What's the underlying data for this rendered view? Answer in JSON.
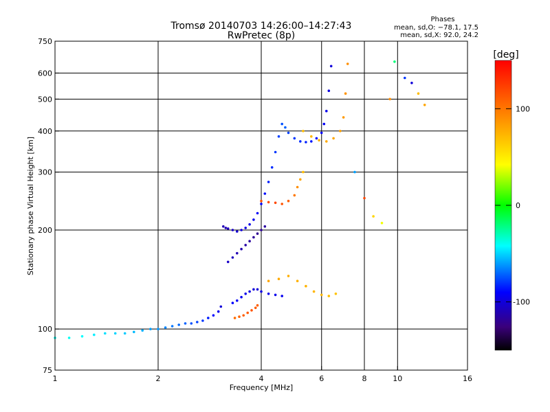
{
  "chart_data": {
    "type": "scatter",
    "title": "Tromsø 20140703 14:26:00–14:27:43",
    "subtitle": "RwPretec (8p)",
    "xlabel": "Frequency [MHz]",
    "ylabel": "Stationary phase Virtual Height [km]",
    "x_scale": "log",
    "y_scale": "log",
    "xlim": [
      1,
      16
    ],
    "ylim": [
      75,
      750
    ],
    "x_ticks": [
      1,
      2,
      4,
      6,
      8,
      10,
      16
    ],
    "y_ticks": [
      75,
      100,
      200,
      300,
      400,
      500,
      600,
      750
    ],
    "grid": true,
    "stats_title": "Phases",
    "stats_lines": [
      "mean, sd,O: −78.1, 17.5",
      "mean, sd,X:  92.0, 24.2"
    ],
    "colorbar": {
      "label": "[deg]",
      "range": [
        -150,
        150
      ],
      "ticks": [
        100,
        0,
        -100
      ],
      "colormap": "rainbow"
    },
    "series": [
      {
        "x": [
          1.0,
          1.1,
          1.2,
          1.3,
          1.4,
          1.5,
          1.6,
          1.7,
          1.8,
          1.9,
          2.0,
          2.1,
          2.2,
          2.3,
          2.4,
          2.5,
          2.6,
          2.7,
          2.8,
          2.9,
          3.0,
          3.05
        ],
        "y": [
          94,
          94,
          95,
          96,
          97,
          97,
          97,
          98,
          99,
          100,
          100,
          101,
          102,
          103,
          104,
          104,
          105,
          106,
          108,
          110,
          113,
          117
        ],
        "phase": [
          -40,
          -40,
          -42,
          -45,
          -48,
          -50,
          -52,
          -55,
          -57,
          -60,
          -62,
          -65,
          -68,
          -70,
          -72,
          -75,
          -78,
          -80,
          -85,
          -90,
          -95,
          -100
        ]
      },
      {
        "x": [
          3.1,
          3.15,
          3.2,
          3.3,
          3.4,
          3.5,
          3.6,
          3.7,
          3.8,
          3.9,
          4.0,
          4.1,
          4.2,
          4.3,
          4.4,
          4.5,
          4.6,
          4.7
        ],
        "y": [
          205,
          203,
          202,
          200,
          198,
          200,
          203,
          208,
          215,
          225,
          240,
          258,
          280,
          310,
          345,
          385,
          420,
          410
        ],
        "phase": [
          -110,
          -110,
          -108,
          -105,
          -102,
          -100,
          -98,
          -96,
          -94,
          -92,
          -90,
          -88,
          -85,
          -82,
          -80,
          -78,
          -75,
          -72
        ]
      },
      {
        "x": [
          4.8,
          5.0,
          5.2,
          5.4,
          5.6,
          5.8,
          6.0,
          6.1,
          6.2,
          6.3,
          6.4
        ],
        "y": [
          395,
          380,
          372,
          370,
          372,
          380,
          395,
          420,
          460,
          530,
          630
        ],
        "phase": [
          -78,
          -80,
          -82,
          -84,
          -86,
          -88,
          -90,
          -92,
          -95,
          -98,
          -100
        ]
      },
      {
        "x": [
          5.3,
          5.6,
          5.9,
          6.2,
          6.5,
          6.8,
          6.95,
          7.05,
          7.15
        ],
        "y": [
          400,
          385,
          375,
          372,
          380,
          400,
          440,
          520,
          640
        ],
        "phase": [
          70,
          72,
          75,
          78,
          80,
          82,
          85,
          88,
          90
        ]
      },
      {
        "x": [
          3.3,
          3.4,
          3.5,
          3.6,
          3.7,
          3.8,
          3.9,
          4.0,
          4.2,
          4.4,
          4.6
        ],
        "y": [
          120,
          122,
          125,
          128,
          130,
          132,
          132,
          130,
          128,
          127,
          126
        ],
        "phase": [
          -90,
          -92,
          -94,
          -96,
          -98,
          -100,
          -100,
          -98,
          -96,
          -95,
          -94
        ]
      },
      {
        "x": [
          3.35,
          3.45,
          3.55,
          3.65,
          3.75,
          3.85,
          3.9
        ],
        "y": [
          108,
          109,
          110,
          112,
          114,
          116,
          118
        ],
        "phase": [
          105,
          108,
          110,
          112,
          115,
          112,
          110
        ]
      },
      {
        "x": [
          4.0,
          4.2,
          4.4,
          4.6,
          4.8,
          5.0,
          5.1,
          5.2,
          5.3
        ],
        "y": [
          245,
          243,
          242,
          240,
          245,
          255,
          270,
          285,
          300
        ],
        "phase": [
          115,
          118,
          120,
          115,
          110,
          100,
          90,
          80,
          70
        ]
      },
      {
        "x": [
          4.2,
          4.5,
          4.8,
          5.1,
          5.4,
          5.7,
          6.0,
          6.3,
          6.6
        ],
        "y": [
          140,
          142,
          145,
          140,
          135,
          130,
          127,
          126,
          128
        ],
        "phase": [
          80,
          78,
          76,
          75,
          74,
          73,
          72,
          70,
          68
        ]
      },
      {
        "x": [
          3.2,
          3.3,
          3.4,
          3.5,
          3.6,
          3.7,
          3.8,
          3.9,
          4.0,
          4.1
        ],
        "y": [
          160,
          165,
          170,
          175,
          180,
          185,
          190,
          195,
          200,
          205
        ],
        "phase": [
          -105,
          -108,
          -110,
          -112,
          -114,
          -116,
          -118,
          -120,
          -118,
          -115
        ]
      },
      {
        "x": [
          7.5,
          8.0,
          8.5,
          9.0,
          9.5,
          9.8,
          10.5,
          11.0,
          11.5,
          12.0
        ],
        "y": [
          300,
          250,
          220,
          210,
          500,
          650,
          580,
          560,
          520,
          480
        ],
        "phase": [
          -60,
          120,
          60,
          40,
          90,
          -20,
          -80,
          -100,
          70,
          80
        ]
      }
    ]
  }
}
